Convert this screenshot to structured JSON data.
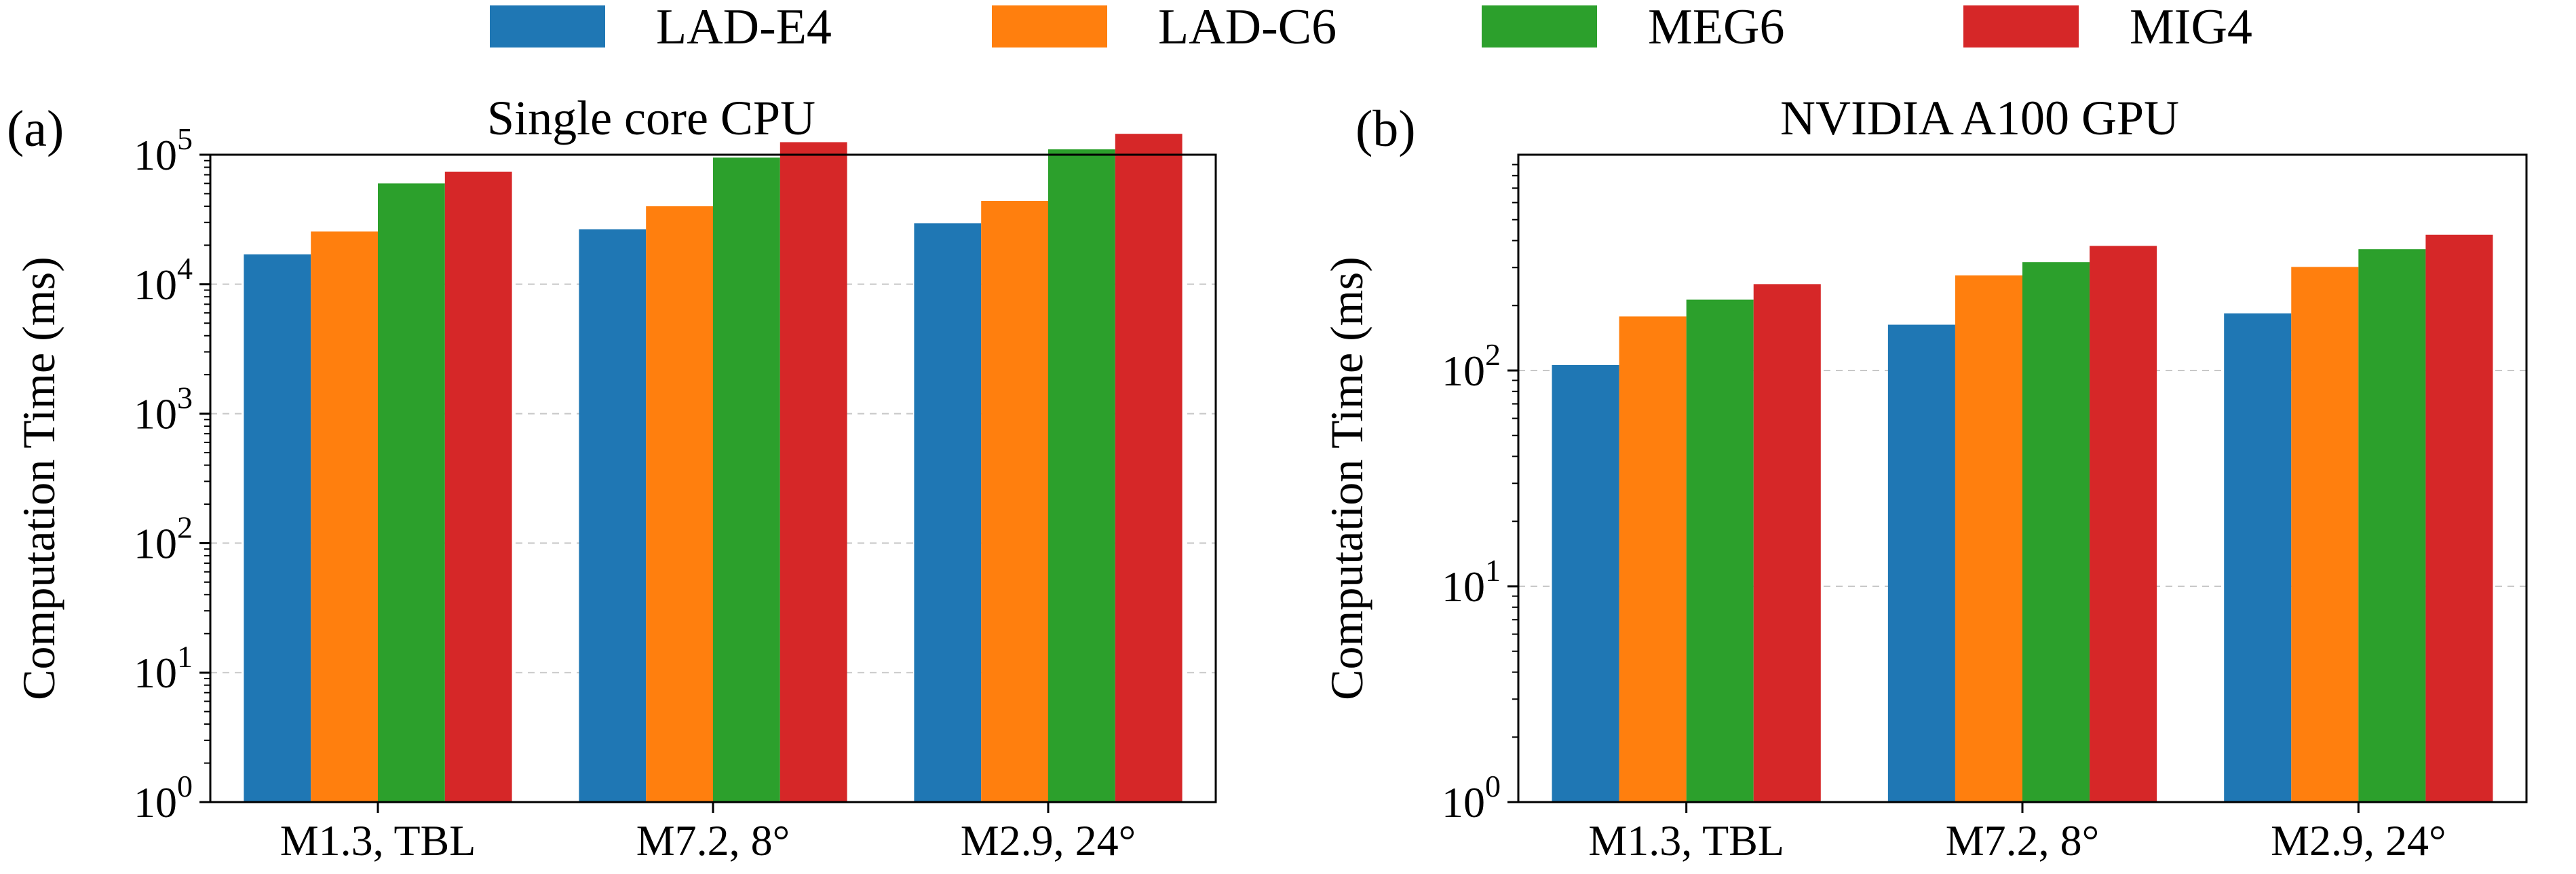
{
  "legend": {
    "entries": [
      {
        "name": "LAD-E4",
        "color": "#1f77b4"
      },
      {
        "name": "LAD-C6",
        "color": "#ff7f0e"
      },
      {
        "name": "MEG6",
        "color": "#2ca02c"
      },
      {
        "name": "MIG4",
        "color": "#d62728"
      }
    ],
    "placement": "top-center"
  },
  "chart_data": [
    {
      "type": "bar",
      "panel_label": "(a)",
      "title": "Single core CPU",
      "xlabel": "",
      "ylabel": "Computation Time (ms)",
      "yscale": "log",
      "ylim": [
        1,
        100000
      ],
      "yticks": [
        1,
        10,
        100,
        1000,
        10000,
        100000
      ],
      "ytick_bases": [
        "10",
        "10",
        "10",
        "10",
        "10",
        "10"
      ],
      "ytick_exponents": [
        "0",
        "1",
        "2",
        "3",
        "4",
        "5"
      ],
      "grid": "horizontal-dashed",
      "categories": [
        "M1.3, TBL",
        "M7.2, 8°",
        "M2.9, 24°"
      ],
      "series": [
        {
          "name": "LAD-E4",
          "color": "#1f77b4",
          "values": [
            17000,
            26500,
            29500
          ]
        },
        {
          "name": "LAD-C6",
          "color": "#ff7f0e",
          "values": [
            25500,
            40000,
            44000
          ]
        },
        {
          "name": "MEG6",
          "color": "#2ca02c",
          "values": [
            60000,
            95000,
            110000
          ]
        },
        {
          "name": "MIG4",
          "color": "#d62728",
          "values": [
            74000,
            125000,
            145000
          ]
        }
      ]
    },
    {
      "type": "bar",
      "panel_label": "(b)",
      "title": "NVIDIA A100 GPU",
      "xlabel": "",
      "ylabel": "Computation Time (ms)",
      "yscale": "log",
      "ylim": [
        1,
        1000
      ],
      "yticks": [
        1,
        10,
        100
      ],
      "ytick_bases": [
        "10",
        "10",
        "10"
      ],
      "ytick_exponents": [
        "0",
        "1",
        "2"
      ],
      "grid": "horizontal-dashed",
      "categories": [
        "M1.3, TBL",
        "M7.2, 8°",
        "M2.9, 24°"
      ],
      "series": [
        {
          "name": "LAD-E4",
          "color": "#1f77b4",
          "values": [
            106,
            163,
            184
          ]
        },
        {
          "name": "LAD-C6",
          "color": "#ff7f0e",
          "values": [
            178,
            276,
            302
          ]
        },
        {
          "name": "MEG6",
          "color": "#2ca02c",
          "values": [
            213,
            318,
            365
          ]
        },
        {
          "name": "MIG4",
          "color": "#d62728",
          "values": [
            251,
            378,
            426
          ]
        }
      ]
    }
  ]
}
